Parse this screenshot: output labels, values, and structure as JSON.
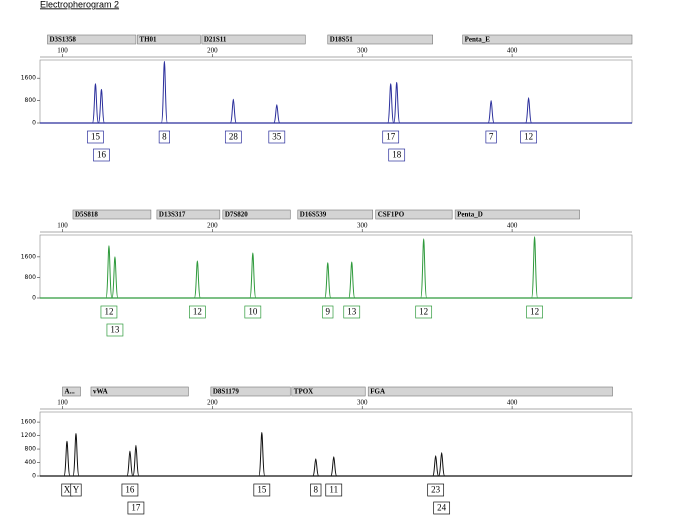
{
  "title": "Electropherogram 2",
  "chart_data": [
    {
      "type": "peaks",
      "color": "#2b2f9c",
      "xlim": [
        85,
        480
      ],
      "xticks": [
        100,
        200,
        300,
        400
      ],
      "ylim": [
        0,
        2250
      ],
      "yticks": [
        0,
        800,
        1600
      ],
      "loci": [
        {
          "name": "D3S1358",
          "start": 90,
          "end": 149
        },
        {
          "name": "TH01",
          "start": 150,
          "end": 192
        },
        {
          "name": "D21S11",
          "start": 193,
          "end": 262
        },
        {
          "name": "D18S51",
          "start": 277,
          "end": 347
        },
        {
          "name": "Penta_E",
          "start": 367,
          "end": 480
        }
      ],
      "x": [
        122,
        126,
        168,
        214,
        243,
        319,
        323,
        386,
        411
      ],
      "values": [
        1400,
        1200,
        2200,
        850,
        650,
        1400,
        1450,
        800,
        900
      ],
      "allele_labels": [
        "15",
        "16",
        "8",
        "28",
        "35",
        "17",
        "18",
        "7",
        "12"
      ]
    },
    {
      "type": "peaks",
      "color": "#2f9a3c",
      "xlim": [
        85,
        480
      ],
      "xticks": [
        100,
        200,
        300,
        400
      ],
      "ylim": [
        0,
        2450
      ],
      "yticks": [
        0,
        800,
        1600
      ],
      "loci": [
        {
          "name": "D5S818",
          "start": 107,
          "end": 159
        },
        {
          "name": "D13S317",
          "start": 163,
          "end": 205
        },
        {
          "name": "D7S820",
          "start": 207,
          "end": 252
        },
        {
          "name": "D16S539",
          "start": 257,
          "end": 307
        },
        {
          "name": "CSF1PO",
          "start": 309,
          "end": 360
        },
        {
          "name": "Penta_D",
          "start": 362,
          "end": 445
        }
      ],
      "x": [
        131,
        135,
        190,
        227,
        277,
        293,
        341,
        415
      ],
      "values": [
        2030,
        1600,
        1440,
        1750,
        1370,
        1400,
        2300,
        2380
      ],
      "allele_labels": [
        "12",
        "13",
        "12",
        "10",
        "9",
        "13",
        "12",
        "12"
      ]
    },
    {
      "type": "peaks",
      "color": "#111111",
      "xlim": [
        85,
        480
      ],
      "xticks": [
        100,
        200,
        300,
        400
      ],
      "ylim": [
        0,
        1900
      ],
      "yticks": [
        0,
        400,
        800,
        1200,
        1600
      ],
      "loci": [
        {
          "name": "A...",
          "start": 100,
          "end": 112
        },
        {
          "name": "vWA",
          "start": 119,
          "end": 184
        },
        {
          "name": "D8S1179",
          "start": 199,
          "end": 252
        },
        {
          "name": "TPOX",
          "start": 253,
          "end": 302
        },
        {
          "name": "FGA",
          "start": 304,
          "end": 467
        }
      ],
      "x": [
        103,
        109,
        145,
        149,
        233,
        269,
        281,
        349,
        353
      ],
      "values": [
        1030,
        1260,
        740,
        910,
        1290,
        510,
        570,
        600,
        690
      ],
      "allele_labels": [
        "X",
        "Y",
        "16",
        "17",
        "15",
        "8",
        "11",
        "23",
        "24"
      ]
    }
  ]
}
